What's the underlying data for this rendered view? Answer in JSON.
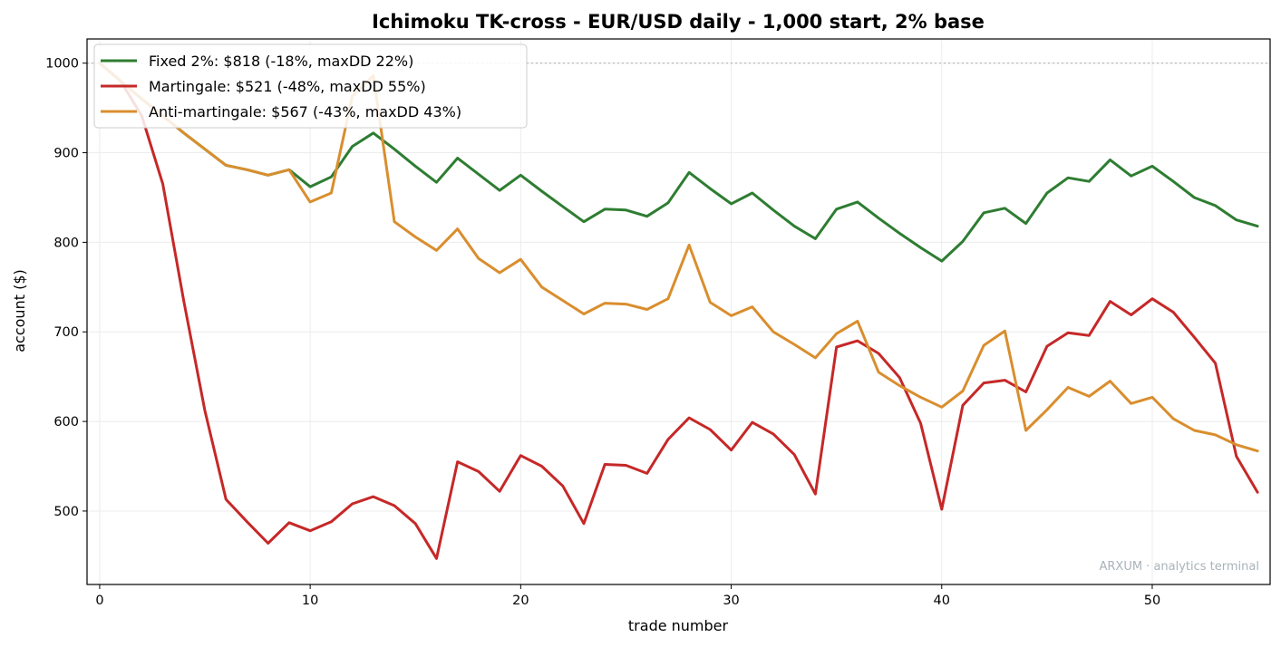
{
  "chart_data": {
    "type": "line",
    "title": "Ichimoku TK-cross - EUR/USD daily - 1,000 start, 2% base",
    "xlabel": "trade number",
    "ylabel": "account ($)",
    "xlim": [
      -0.6,
      55.6
    ],
    "ylim": [
      418,
      1027
    ],
    "xticks": [
      0,
      10,
      20,
      30,
      40,
      50
    ],
    "yticks": [
      500,
      600,
      700,
      800,
      900,
      1000
    ],
    "grid": true,
    "reference_line": 1000,
    "legend_position": "upper-left",
    "watermark": "ARXUM · analytics terminal",
    "x": [
      0,
      1,
      2,
      3,
      4,
      5,
      6,
      7,
      8,
      9,
      10,
      11,
      12,
      13,
      14,
      15,
      16,
      17,
      18,
      19,
      20,
      21,
      22,
      23,
      24,
      25,
      26,
      27,
      28,
      29,
      30,
      31,
      32,
      33,
      34,
      35,
      36,
      37,
      38,
      39,
      40,
      41,
      42,
      43,
      44,
      45,
      46,
      47,
      48,
      49,
      50,
      51,
      52,
      53,
      54,
      55
    ],
    "series": [
      {
        "name": "Fixed 2%: $818 (-18%, maxDD 22%)",
        "color": "#2e7d32",
        "values": [
          1000,
          980,
          960,
          941,
          922,
          904,
          886,
          881,
          875,
          881,
          862,
          873,
          907,
          922,
          904,
          885,
          867,
          894,
          876,
          858,
          875,
          857,
          840,
          823,
          837,
          836,
          829,
          844,
          878,
          860,
          843,
          855,
          836,
          818,
          804,
          837,
          845,
          827,
          810,
          794,
          779,
          801,
          833,
          838,
          821,
          855,
          872,
          868,
          892,
          874,
          885,
          868,
          850,
          841,
          825,
          818
        ]
      },
      {
        "name": "Martingale: $521 (-48%, maxDD 55%)",
        "color": "#c62828",
        "values": [
          1000,
          980,
          941,
          865,
          734,
          612,
          513,
          488,
          464,
          487,
          478,
          488,
          508,
          516,
          506,
          486,
          447,
          555,
          544,
          522,
          562,
          550,
          528,
          486,
          552,
          551,
          542,
          580,
          604,
          591,
          568,
          599,
          586,
          563,
          519,
          683,
          690,
          676,
          649,
          598,
          502,
          618,
          643,
          646,
          633,
          684,
          699,
          696,
          734,
          719,
          737,
          722,
          694,
          665,
          561,
          521
        ]
      },
      {
        "name": "Anti-martingale: $567 (-43%, maxDD 43%)",
        "color": "#d98e2e",
        "values": [
          1000,
          980,
          960,
          941,
          922,
          904,
          886,
          881,
          875,
          881,
          845,
          855,
          963,
          986,
          823,
          806,
          791,
          815,
          782,
          766,
          781,
          750,
          735,
          720,
          732,
          731,
          725,
          737,
          797,
          733,
          718,
          728,
          700,
          686,
          671,
          698,
          712,
          655,
          640,
          627,
          616,
          634,
          685,
          701,
          590,
          613,
          638,
          628,
          645,
          620,
          627,
          603,
          590,
          585,
          574,
          567
        ]
      }
    ]
  }
}
